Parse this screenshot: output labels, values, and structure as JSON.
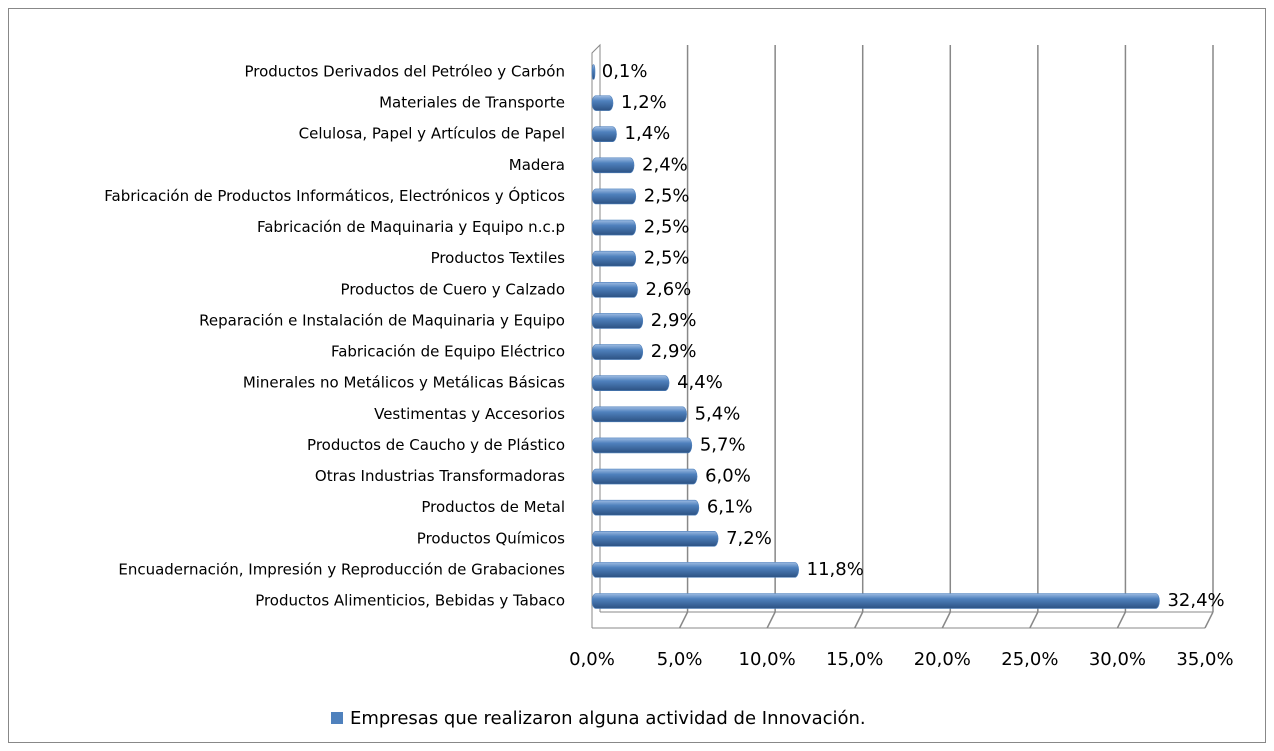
{
  "chart_data": {
    "type": "bar",
    "orientation": "horizontal",
    "categories": [
      "Productos Derivados del Petróleo y Carbón",
      "Materiales de Transporte",
      "Celulosa, Papel y Artículos de Papel",
      "Madera",
      "Fabricación de Productos Informáticos, Electrónicos y Ópticos",
      "Fabricación de Maquinaria y Equipo n.c.p",
      "Productos Textiles",
      "Productos de Cuero y Calzado",
      "Reparación e Instalación de Maquinaria y Equipo",
      "Fabricación de Equipo Eléctrico",
      "Minerales no Metálicos y Metálicas Básicas",
      "Vestimentas y Accesorios",
      "Productos de Caucho y de Plástico",
      "Otras Industrias Transformadoras",
      "Productos de Metal",
      "Productos Químicos",
      "Encuadernación, Impresión y Reproducción de Grabaciones",
      "Productos Alimenticios, Bebidas y Tabaco"
    ],
    "series": [
      {
        "name": "Empresas que realizaron alguna actividad de Innovación.",
        "color": "#4f81bd",
        "values": [
          0.1,
          1.2,
          1.4,
          2.4,
          2.5,
          2.5,
          2.5,
          2.6,
          2.9,
          2.9,
          4.4,
          5.4,
          5.7,
          6.0,
          6.1,
          7.2,
          11.8,
          32.4
        ],
        "value_labels": [
          "0,1%",
          "1,2%",
          "1,4%",
          "2,4%",
          "2,5%",
          "2,5%",
          "2,5%",
          "2,6%",
          "2,9%",
          "2,9%",
          "4,4%",
          "5,4%",
          "5,7%",
          "6,0%",
          "6,1%",
          "7,2%",
          "11,8%",
          "32,4%"
        ]
      }
    ],
    "xlim": [
      0,
      35
    ],
    "xticks": [
      {
        "value": 0,
        "label": "0,0%"
      },
      {
        "value": 5,
        "label": "5,0%"
      },
      {
        "value": 10,
        "label": "10,0%"
      },
      {
        "value": 15,
        "label": "15,0%"
      },
      {
        "value": 20,
        "label": "20,0%"
      },
      {
        "value": 25,
        "label": "25,0%"
      },
      {
        "value": 30,
        "label": "30,0%"
      },
      {
        "value": 35,
        "label": "35,0%"
      }
    ],
    "grid": true,
    "legend": "bottom"
  }
}
